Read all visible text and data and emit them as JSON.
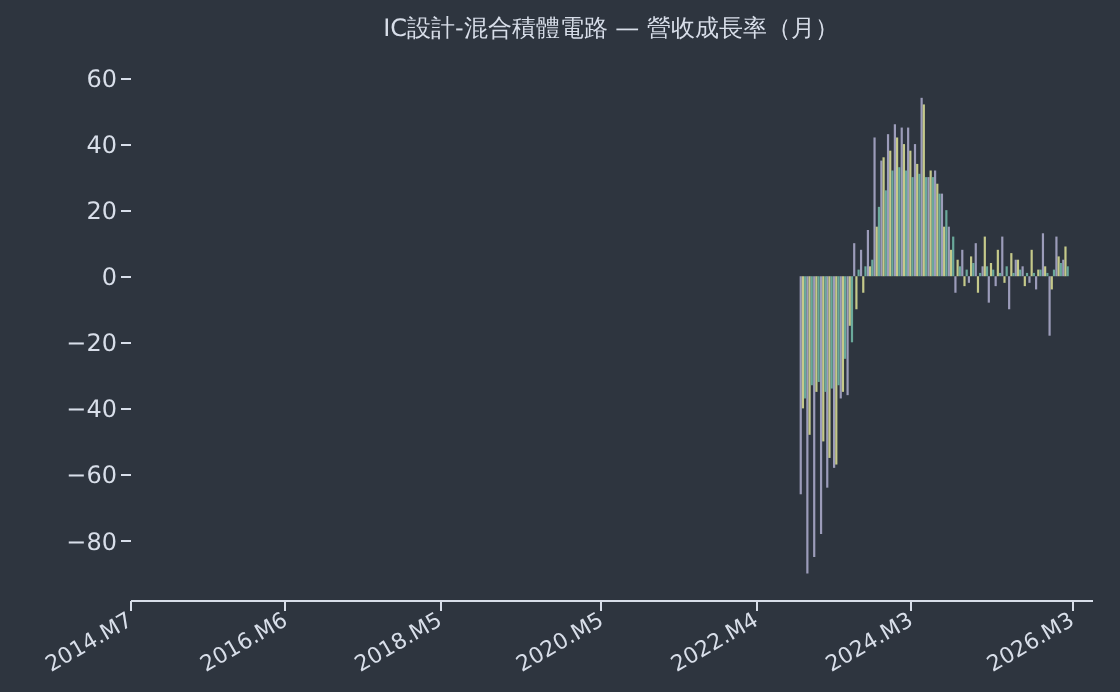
{
  "chart_data": {
    "type": "bar",
    "title": "IC設計-混合積體電路 — 營收成長率（月）",
    "x": [
      "2022-11",
      "2022-12",
      "2023-01",
      "2023-02",
      "2023-03",
      "2023-04",
      "2023-05",
      "2023-06",
      "2023-07",
      "2023-08",
      "2023-09",
      "2023-10",
      "2023-11",
      "2023-12",
      "2024-01",
      "2024-02",
      "2024-03",
      "2024-04",
      "2024-05",
      "2024-06",
      "2024-07",
      "2024-08",
      "2024-09",
      "2024-10",
      "2024-11",
      "2024-12",
      "2025-01",
      "2025-02",
      "2025-03",
      "2025-04",
      "2025-05",
      "2025-06",
      "2025-07",
      "2025-08",
      "2025-09",
      "2025-10",
      "2025-11",
      "2025-12",
      "2026-01",
      "2026-02"
    ],
    "series": [
      {
        "color": "#9c9cba",
        "values": [
          -66,
          -90,
          -85,
          -78,
          -64,
          -58,
          -37,
          -36,
          10,
          8,
          14,
          42,
          35,
          43,
          46,
          45,
          45,
          40,
          54,
          30,
          32,
          25,
          15,
          -5,
          8,
          -2,
          10,
          3,
          -8,
          -3,
          12,
          -10,
          5,
          3,
          -2,
          -4,
          13,
          -18,
          12,
          5
        ]
      },
      {
        "color": "#c5c98a",
        "values": [
          -40,
          -48,
          -35,
          -50,
          -55,
          -57,
          -35,
          -15,
          -10,
          -5,
          3,
          15,
          36,
          38,
          42,
          40,
          38,
          34,
          52,
          32,
          28,
          15,
          8,
          5,
          -3,
          6,
          -5,
          12,
          4,
          8,
          -2,
          7,
          5,
          -3,
          8,
          2,
          3,
          -4,
          6,
          9
        ]
      },
      {
        "color": "#6aa99b",
        "values": [
          -37,
          -33,
          -32,
          -35,
          -34,
          -33,
          -25,
          -20,
          2,
          3,
          5,
          21,
          26,
          32,
          33,
          32,
          30,
          31,
          30,
          30,
          25,
          20,
          12,
          3,
          2,
          4,
          1,
          3,
          2,
          1,
          3,
          1,
          2,
          1,
          1,
          2,
          1,
          2,
          4,
          3
        ]
      }
    ],
    "xlim": [
      "2014-07",
      "2026-06"
    ],
    "xticks": [
      {
        "value": "2014-07",
        "label": "2014.M7"
      },
      {
        "value": "2016-06",
        "label": "2016.M6"
      },
      {
        "value": "2018-05",
        "label": "2018.M5"
      },
      {
        "value": "2020-05",
        "label": "2020.M5"
      },
      {
        "value": "2022-04",
        "label": "2022.M4"
      },
      {
        "value": "2024-03",
        "label": "2024.M3"
      },
      {
        "value": "2026-03",
        "label": "2026.M3"
      }
    ],
    "ylim": [
      -98,
      60
    ],
    "yticks": [
      -80,
      -60,
      -40,
      -20,
      0,
      20,
      40,
      60
    ]
  }
}
